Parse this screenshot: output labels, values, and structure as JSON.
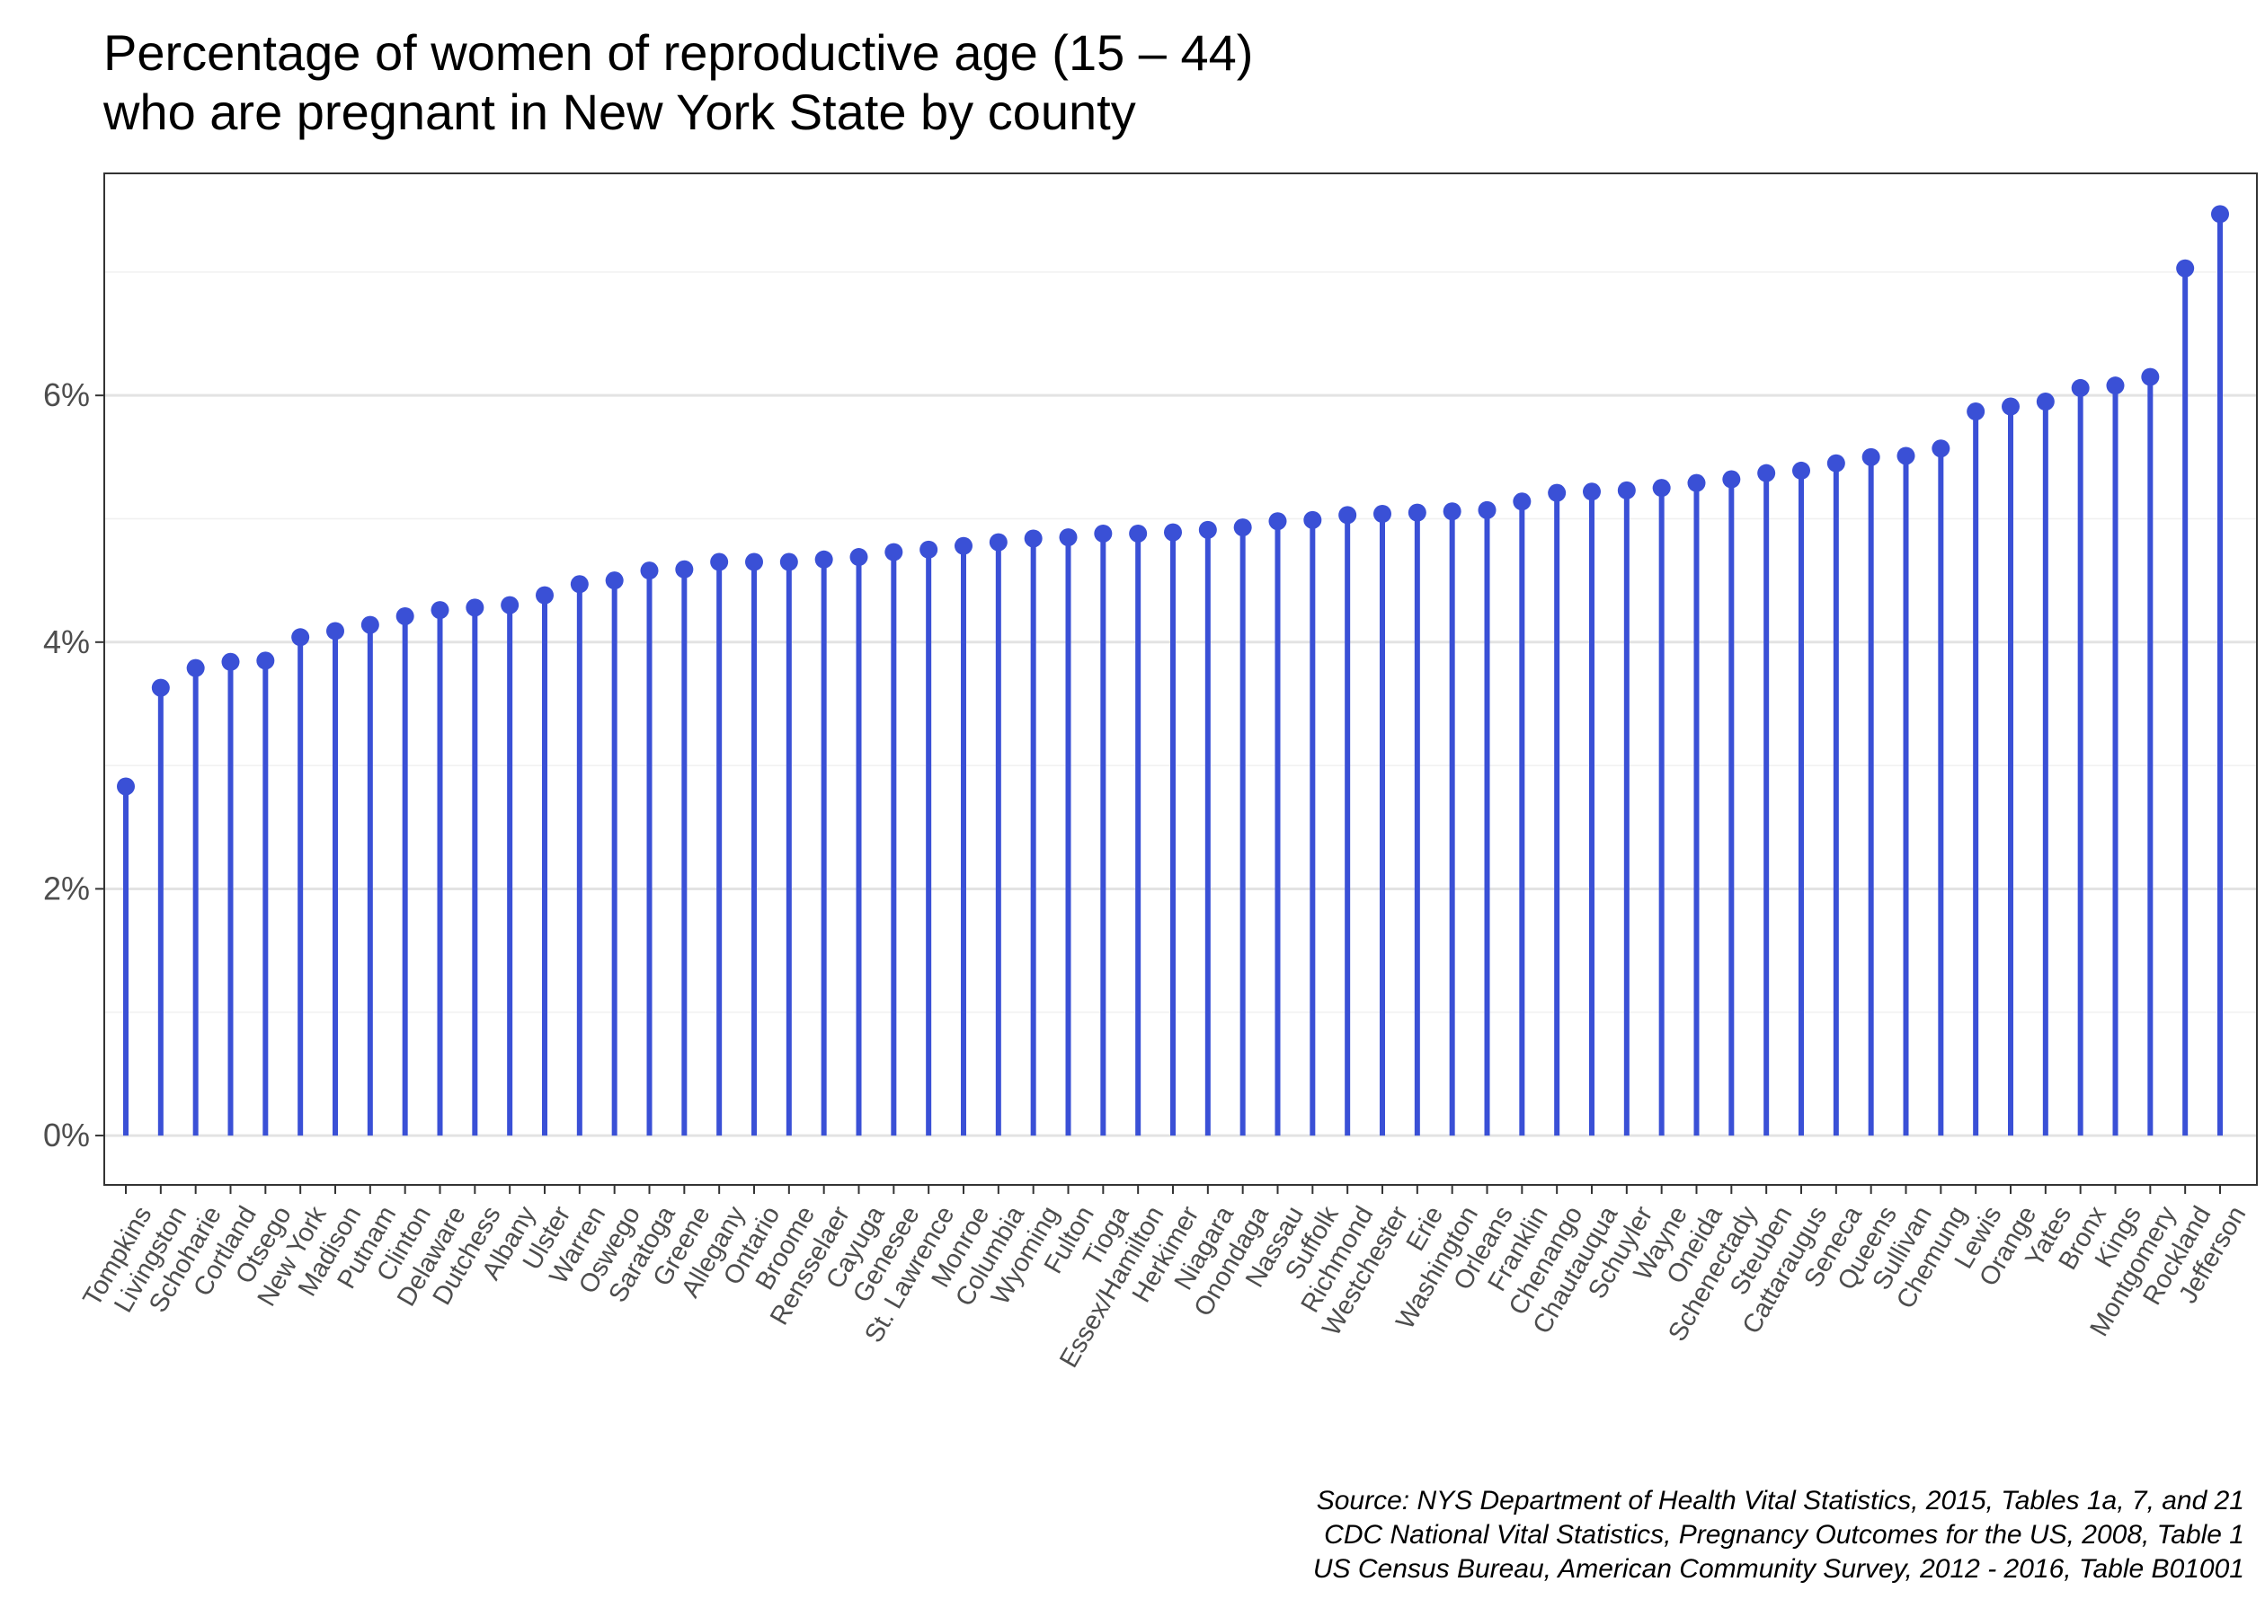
{
  "chart_data": {
    "type": "lollipop",
    "title_lines": [
      "Percentage of women of reproductive age (15 – 44)",
      "who are pregnant in New York State by county"
    ],
    "xlabel": "",
    "ylabel": "",
    "ylim": [
      -0.4,
      7.8
    ],
    "y_ticks": [
      0,
      2,
      4,
      6
    ],
    "y_tick_labels": [
      "0%",
      "2%",
      "4%",
      "6%"
    ],
    "y_unit": "%",
    "grid": true,
    "legend": "none",
    "colors": {
      "series": "#3a50d6",
      "grid_major": "#e3e3e3",
      "grid_minor": "#f0f0f0",
      "panel_border": "#333333",
      "axis_text": "#4d4d4d"
    },
    "categories": [
      "Tompkins",
      "Livingston",
      "Schoharie",
      "Cortland",
      "Otsego",
      "New York",
      "Madison",
      "Putnam",
      "Clinton",
      "Delaware",
      "Dutchess",
      "Albany",
      "Ulster",
      "Warren",
      "Oswego",
      "Saratoga",
      "Greene",
      "Allegany",
      "Ontario",
      "Broome",
      "Rensselaer",
      "Cayuga",
      "Genesee",
      "St. Lawrence",
      "Monroe",
      "Columbia",
      "Wyoming",
      "Fulton",
      "Tioga",
      "Essex/Hamilton",
      "Herkimer",
      "Niagara",
      "Onondaga",
      "Nassau",
      "Suffolk",
      "Richmond",
      "Westchester",
      "Erie",
      "Washington",
      "Orleans",
      "Franklin",
      "Chenango",
      "Chautauqua",
      "Schuyler",
      "Wayne",
      "Oneida",
      "Schenectady",
      "Steuben",
      "Cattaraugus",
      "Seneca",
      "Queens",
      "Sullivan",
      "Chemung",
      "Lewis",
      "Orange",
      "Yates",
      "Bronx",
      "Kings",
      "Montgomery",
      "Rockland",
      "Jefferson"
    ],
    "values": [
      2.83,
      3.63,
      3.79,
      3.84,
      3.85,
      4.04,
      4.09,
      4.14,
      4.21,
      4.26,
      4.28,
      4.3,
      4.38,
      4.47,
      4.5,
      4.58,
      4.59,
      4.65,
      4.65,
      4.65,
      4.67,
      4.69,
      4.73,
      4.75,
      4.78,
      4.81,
      4.84,
      4.85,
      4.88,
      4.88,
      4.89,
      4.91,
      4.93,
      4.98,
      4.99,
      5.03,
      5.04,
      5.05,
      5.06,
      5.07,
      5.14,
      5.21,
      5.22,
      5.23,
      5.25,
      5.29,
      5.32,
      5.37,
      5.39,
      5.45,
      5.5,
      5.51,
      5.57,
      5.87,
      5.91,
      5.95,
      6.06,
      6.08,
      6.15,
      7.03,
      7.47
    ],
    "caption_lines": [
      "Source: NYS Department of Health Vital Statistics, 2015, Tables 1a, 7, and 21",
      "CDC National Vital Statistics, Pregnancy Outcomes for the US, 2008, Table 1",
      "US Census Bureau, American Community Survey, 2012 - 2016, Table B01001"
    ]
  }
}
